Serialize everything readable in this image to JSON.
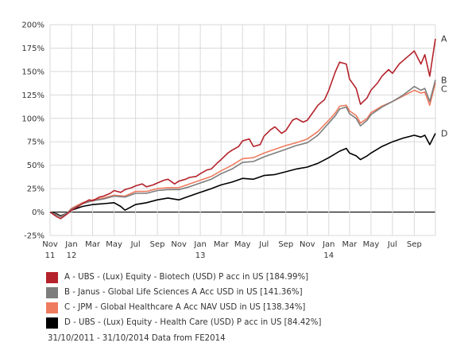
{
  "chart_data": {
    "type": "line",
    "title": "",
    "xlabel": "",
    "ylabel": "",
    "ylim": [
      -25,
      200
    ],
    "y_ticks": [
      -25,
      0,
      25,
      50,
      75,
      100,
      125,
      150,
      175,
      200
    ],
    "y_tick_labels": [
      "-25%",
      "0%",
      "25%",
      "50%",
      "75%",
      "100%",
      "125%",
      "150%",
      "175%",
      "200%"
    ],
    "x_range": [
      "2011-11-01",
      "2014-10-31"
    ],
    "x_ticks": [
      {
        "date": "2011-11-01",
        "label": "Nov",
        "sub": "11"
      },
      {
        "date": "2012-01-01",
        "label": "Jan",
        "sub": "12"
      },
      {
        "date": "2012-03-01",
        "label": "Mar",
        "sub": ""
      },
      {
        "date": "2012-05-01",
        "label": "May",
        "sub": ""
      },
      {
        "date": "2012-07-01",
        "label": "Jul",
        "sub": ""
      },
      {
        "date": "2012-09-01",
        "label": "Sep",
        "sub": ""
      },
      {
        "date": "2012-11-01",
        "label": "Nov",
        "sub": ""
      },
      {
        "date": "2013-01-01",
        "label": "Jan",
        "sub": "13"
      },
      {
        "date": "2013-03-01",
        "label": "Mar",
        "sub": ""
      },
      {
        "date": "2013-05-01",
        "label": "May",
        "sub": ""
      },
      {
        "date": "2013-07-01",
        "label": "Jul",
        "sub": ""
      },
      {
        "date": "2013-09-01",
        "label": "Sep",
        "sub": ""
      },
      {
        "date": "2013-11-01",
        "label": "Nov",
        "sub": ""
      },
      {
        "date": "2014-01-01",
        "label": "Jan",
        "sub": "14"
      },
      {
        "date": "2014-03-01",
        "label": "Mar",
        "sub": ""
      },
      {
        "date": "2014-05-01",
        "label": "May",
        "sub": ""
      },
      {
        "date": "2014-07-01",
        "label": "Jul",
        "sub": ""
      },
      {
        "date": "2014-09-01",
        "label": "Sep",
        "sub": ""
      }
    ],
    "grid": true,
    "legend_position": "bottom",
    "series": [
      {
        "key": "A",
        "name": "A - UBS - (Lux) Equity - Biotech (USD) P acc in US [184.99%]",
        "color": "#b5222b",
        "end_label": "A",
        "points": [
          [
            "2011-11-01",
            0
          ],
          [
            "2011-11-20",
            -5
          ],
          [
            "2011-12-01",
            -7
          ],
          [
            "2011-12-20",
            -2
          ],
          [
            "2012-01-01",
            2
          ],
          [
            "2012-01-20",
            6
          ],
          [
            "2012-02-01",
            9
          ],
          [
            "2012-02-20",
            13
          ],
          [
            "2012-03-01",
            12
          ],
          [
            "2012-03-20",
            16
          ],
          [
            "2012-04-01",
            17
          ],
          [
            "2012-04-20",
            20
          ],
          [
            "2012-05-01",
            23
          ],
          [
            "2012-05-20",
            21
          ],
          [
            "2012-06-01",
            24
          ],
          [
            "2012-06-20",
            26
          ],
          [
            "2012-07-01",
            28
          ],
          [
            "2012-07-20",
            30
          ],
          [
            "2012-08-01",
            27
          ],
          [
            "2012-08-20",
            29
          ],
          [
            "2012-09-01",
            31
          ],
          [
            "2012-09-20",
            34
          ],
          [
            "2012-10-01",
            35
          ],
          [
            "2012-10-20",
            30
          ],
          [
            "2012-11-01",
            33
          ],
          [
            "2012-11-20",
            35
          ],
          [
            "2012-12-01",
            37
          ],
          [
            "2012-12-20",
            38
          ],
          [
            "2013-01-01",
            41
          ],
          [
            "2013-01-20",
            45
          ],
          [
            "2013-02-01",
            46
          ],
          [
            "2013-02-20",
            53
          ],
          [
            "2013-03-01",
            56
          ],
          [
            "2013-03-20",
            63
          ],
          [
            "2013-04-01",
            66
          ],
          [
            "2013-04-20",
            70
          ],
          [
            "2013-05-01",
            76
          ],
          [
            "2013-05-20",
            78
          ],
          [
            "2013-06-01",
            70
          ],
          [
            "2013-06-20",
            72
          ],
          [
            "2013-07-01",
            81
          ],
          [
            "2013-07-20",
            88
          ],
          [
            "2013-08-01",
            91
          ],
          [
            "2013-08-20",
            84
          ],
          [
            "2013-09-01",
            87
          ],
          [
            "2013-09-20",
            98
          ],
          [
            "2013-10-01",
            100
          ],
          [
            "2013-10-20",
            96
          ],
          [
            "2013-11-01",
            98
          ],
          [
            "2013-11-20",
            108
          ],
          [
            "2013-12-01",
            114
          ],
          [
            "2013-12-20",
            120
          ],
          [
            "2014-01-01",
            130
          ],
          [
            "2014-01-20",
            150
          ],
          [
            "2014-02-01",
            160
          ],
          [
            "2014-02-20",
            158
          ],
          [
            "2014-03-01",
            142
          ],
          [
            "2014-03-20",
            132
          ],
          [
            "2014-04-01",
            115
          ],
          [
            "2014-04-20",
            122
          ],
          [
            "2014-05-01",
            130
          ],
          [
            "2014-05-20",
            138
          ],
          [
            "2014-06-01",
            145
          ],
          [
            "2014-06-20",
            152
          ],
          [
            "2014-07-01",
            148
          ],
          [
            "2014-07-20",
            158
          ],
          [
            "2014-08-01",
            162
          ],
          [
            "2014-08-20",
            168
          ],
          [
            "2014-09-01",
            172
          ],
          [
            "2014-09-20",
            158
          ],
          [
            "2014-10-01",
            168
          ],
          [
            "2014-10-15",
            145
          ],
          [
            "2014-10-31",
            185
          ]
        ]
      },
      {
        "key": "B",
        "name": "B - Janus - Global Life Sciences A Acc USD in US [141.36%]",
        "color": "#7d7d7d",
        "end_label": "B",
        "points": [
          [
            "2011-11-01",
            0
          ],
          [
            "2011-11-20",
            -3
          ],
          [
            "2011-12-01",
            -5
          ],
          [
            "2011-12-20",
            -1
          ],
          [
            "2012-01-01",
            3
          ],
          [
            "2012-02-01",
            9
          ],
          [
            "2012-03-01",
            12
          ],
          [
            "2012-04-01",
            14
          ],
          [
            "2012-05-01",
            17
          ],
          [
            "2012-06-01",
            16
          ],
          [
            "2012-07-01",
            20
          ],
          [
            "2012-08-01",
            20
          ],
          [
            "2012-09-01",
            23
          ],
          [
            "2012-10-01",
            24
          ],
          [
            "2012-11-01",
            24
          ],
          [
            "2012-12-01",
            27
          ],
          [
            "2013-01-01",
            31
          ],
          [
            "2013-02-01",
            35
          ],
          [
            "2013-03-01",
            41
          ],
          [
            "2013-04-01",
            46
          ],
          [
            "2013-05-01",
            53
          ],
          [
            "2013-06-01",
            54
          ],
          [
            "2013-07-01",
            59
          ],
          [
            "2013-08-01",
            63
          ],
          [
            "2013-09-01",
            67
          ],
          [
            "2013-10-01",
            71
          ],
          [
            "2013-11-01",
            74
          ],
          [
            "2013-12-01",
            82
          ],
          [
            "2014-01-01",
            95
          ],
          [
            "2014-01-20",
            103
          ],
          [
            "2014-02-01",
            110
          ],
          [
            "2014-02-20",
            112
          ],
          [
            "2014-03-01",
            105
          ],
          [
            "2014-03-20",
            100
          ],
          [
            "2014-04-01",
            92
          ],
          [
            "2014-04-20",
            98
          ],
          [
            "2014-05-01",
            104
          ],
          [
            "2014-06-01",
            112
          ],
          [
            "2014-07-01",
            118
          ],
          [
            "2014-08-01",
            125
          ],
          [
            "2014-09-01",
            134
          ],
          [
            "2014-09-20",
            130
          ],
          [
            "2014-10-01",
            132
          ],
          [
            "2014-10-15",
            118
          ],
          [
            "2014-10-31",
            141
          ]
        ]
      },
      {
        "key": "C",
        "name": "C - JPM - Global Healthcare A Acc NAV USD in US [138.34%]",
        "color": "#ef7b5f",
        "end_label": "C",
        "points": [
          [
            "2011-11-01",
            0
          ],
          [
            "2011-11-20",
            -3
          ],
          [
            "2011-12-01",
            -5
          ],
          [
            "2011-12-20",
            -1
          ],
          [
            "2012-01-01",
            4
          ],
          [
            "2012-02-01",
            10
          ],
          [
            "2012-03-01",
            13
          ],
          [
            "2012-04-01",
            15
          ],
          [
            "2012-05-01",
            18
          ],
          [
            "2012-06-01",
            17
          ],
          [
            "2012-07-01",
            22
          ],
          [
            "2012-08-01",
            22
          ],
          [
            "2012-09-01",
            25
          ],
          [
            "2012-10-01",
            26
          ],
          [
            "2012-11-01",
            26
          ],
          [
            "2012-12-01",
            30
          ],
          [
            "2013-01-01",
            34
          ],
          [
            "2013-02-01",
            38
          ],
          [
            "2013-03-01",
            44
          ],
          [
            "2013-04-01",
            50
          ],
          [
            "2013-05-01",
            57
          ],
          [
            "2013-06-01",
            58
          ],
          [
            "2013-07-01",
            63
          ],
          [
            "2013-08-01",
            67
          ],
          [
            "2013-09-01",
            71
          ],
          [
            "2013-10-01",
            74
          ],
          [
            "2013-11-01",
            78
          ],
          [
            "2013-12-01",
            86
          ],
          [
            "2014-01-01",
            98
          ],
          [
            "2014-01-20",
            106
          ],
          [
            "2014-02-01",
            113
          ],
          [
            "2014-02-20",
            114
          ],
          [
            "2014-03-01",
            108
          ],
          [
            "2014-03-20",
            103
          ],
          [
            "2014-04-01",
            95
          ],
          [
            "2014-04-20",
            100
          ],
          [
            "2014-05-01",
            106
          ],
          [
            "2014-06-01",
            113
          ],
          [
            "2014-07-01",
            118
          ],
          [
            "2014-08-01",
            124
          ],
          [
            "2014-09-01",
            130
          ],
          [
            "2014-09-20",
            127
          ],
          [
            "2014-10-01",
            128
          ],
          [
            "2014-10-15",
            114
          ],
          [
            "2014-10-31",
            138
          ]
        ]
      },
      {
        "key": "D",
        "name": "D - UBS - (Lux) Equity - Health Care (USD) P acc in US [84.42%]",
        "color": "#000000",
        "end_label": "D",
        "points": [
          [
            "2011-11-01",
            0
          ],
          [
            "2011-11-20",
            -2
          ],
          [
            "2011-12-01",
            -4
          ],
          [
            "2011-12-20",
            -1
          ],
          [
            "2012-01-01",
            2
          ],
          [
            "2012-02-01",
            6
          ],
          [
            "2012-03-01",
            8
          ],
          [
            "2012-04-01",
            9
          ],
          [
            "2012-05-01",
            10
          ],
          [
            "2012-05-20",
            6
          ],
          [
            "2012-06-01",
            2
          ],
          [
            "2012-07-01",
            8
          ],
          [
            "2012-08-01",
            10
          ],
          [
            "2012-09-01",
            13
          ],
          [
            "2012-10-01",
            15
          ],
          [
            "2012-11-01",
            13
          ],
          [
            "2012-12-01",
            17
          ],
          [
            "2013-01-01",
            21
          ],
          [
            "2013-02-01",
            25
          ],
          [
            "2013-03-01",
            29
          ],
          [
            "2013-04-01",
            32
          ],
          [
            "2013-05-01",
            36
          ],
          [
            "2013-06-01",
            35
          ],
          [
            "2013-07-01",
            39
          ],
          [
            "2013-08-01",
            40
          ],
          [
            "2013-09-01",
            43
          ],
          [
            "2013-10-01",
            46
          ],
          [
            "2013-11-01",
            48
          ],
          [
            "2013-12-01",
            52
          ],
          [
            "2014-01-01",
            58
          ],
          [
            "2014-02-01",
            65
          ],
          [
            "2014-02-20",
            68
          ],
          [
            "2014-03-01",
            63
          ],
          [
            "2014-03-20",
            60
          ],
          [
            "2014-04-01",
            56
          ],
          [
            "2014-04-20",
            60
          ],
          [
            "2014-05-01",
            63
          ],
          [
            "2014-06-01",
            70
          ],
          [
            "2014-07-01",
            75
          ],
          [
            "2014-08-01",
            79
          ],
          [
            "2014-09-01",
            82
          ],
          [
            "2014-09-20",
            80
          ],
          [
            "2014-10-01",
            82
          ],
          [
            "2014-10-15",
            72
          ],
          [
            "2014-10-31",
            84
          ]
        ]
      }
    ]
  },
  "legend": [
    {
      "color": "#b5222b",
      "label": "A - UBS - (Lux) Equity - Biotech (USD) P acc in US [184.99%]"
    },
    {
      "color": "#7d7d7d",
      "label": "B - Janus - Global Life Sciences A Acc USD in US [141.36%]"
    },
    {
      "color": "#ef7b5f",
      "label": "C - JPM - Global Healthcare A Acc NAV USD in US [138.34%]"
    },
    {
      "color": "#000000",
      "label": "D - UBS - (Lux) Equity - Health Care (USD) P acc in US [84.42%]"
    }
  ],
  "footnote": "31/10/2011 - 31/10/2014 Data from FE2014"
}
